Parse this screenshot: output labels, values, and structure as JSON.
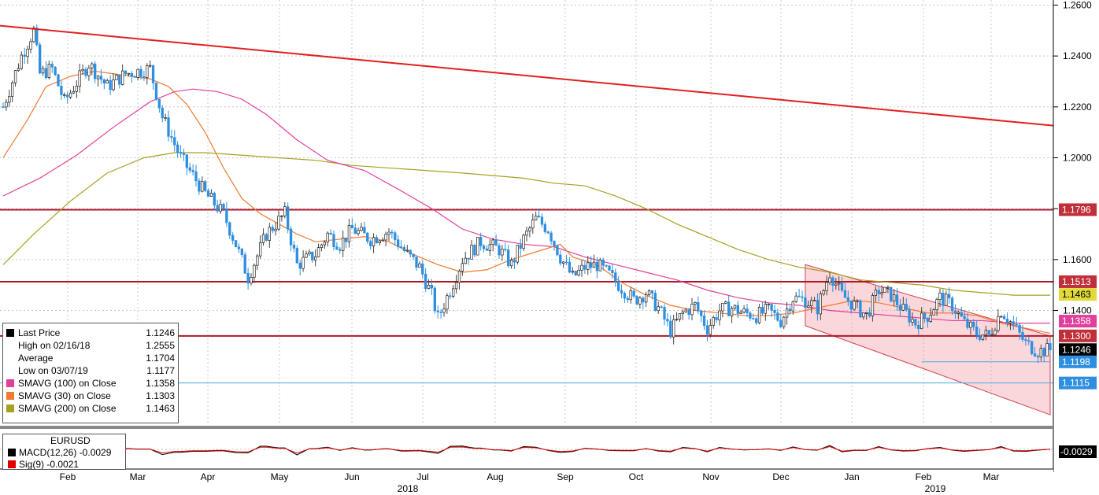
{
  "chart_data": {
    "type": "candlestick",
    "instrument": "EURUSD",
    "y_ticks": [
      "1.2600",
      "1.2400",
      "1.2200",
      "1.2000",
      "1.1800",
      "1.1600",
      "1.1400"
    ],
    "ylim": [
      1.095,
      1.262
    ],
    "x_months": [
      "Feb",
      "Mar",
      "Apr",
      "May",
      "Jun",
      "Jul",
      "Aug",
      "Sep",
      "Oct",
      "Nov",
      "Dec",
      "Jan",
      "Feb",
      "Mar"
    ],
    "x_years": [
      "2018",
      "2019"
    ],
    "close_path": [
      [
        0,
        1.22
      ],
      [
        6,
        1.24
      ],
      [
        10,
        1.25
      ],
      [
        12,
        1.233
      ],
      [
        16,
        1.235
      ],
      [
        20,
        1.222
      ],
      [
        28,
        1.237
      ],
      [
        34,
        1.228
      ],
      [
        40,
        1.233
      ],
      [
        48,
        1.235
      ],
      [
        52,
        1.216
      ],
      [
        58,
        1.2
      ],
      [
        66,
        1.186
      ],
      [
        72,
        1.178
      ],
      [
        76,
        1.166
      ],
      [
        80,
        1.153
      ],
      [
        86,
        1.17
      ],
      [
        92,
        1.178
      ],
      [
        96,
        1.158
      ],
      [
        102,
        1.162
      ],
      [
        106,
        1.17
      ],
      [
        110,
        1.166
      ],
      [
        114,
        1.172
      ],
      [
        120,
        1.168
      ],
      [
        126,
        1.171
      ],
      [
        132,
        1.162
      ],
      [
        136,
        1.157
      ],
      [
        140,
        1.146
      ],
      [
        142,
        1.137
      ],
      [
        146,
        1.148
      ],
      [
        150,
        1.16
      ],
      [
        156,
        1.167
      ],
      [
        162,
        1.164
      ],
      [
        166,
        1.158
      ],
      [
        170,
        1.168
      ],
      [
        174,
        1.176
      ],
      [
        178,
        1.172
      ],
      [
        182,
        1.161
      ],
      [
        186,
        1.153
      ],
      [
        190,
        1.157
      ],
      [
        194,
        1.158
      ],
      [
        198,
        1.154
      ],
      [
        202,
        1.149
      ],
      [
        206,
        1.144
      ],
      [
        210,
        1.147
      ],
      [
        214,
        1.141
      ],
      [
        218,
        1.132
      ],
      [
        222,
        1.139
      ],
      [
        226,
        1.142
      ],
      [
        230,
        1.133
      ],
      [
        234,
        1.14
      ],
      [
        238,
        1.141
      ],
      [
        242,
        1.139
      ],
      [
        246,
        1.138
      ],
      [
        250,
        1.14
      ],
      [
        254,
        1.136
      ],
      [
        258,
        1.145
      ],
      [
        262,
        1.144
      ],
      [
        266,
        1.141
      ],
      [
        270,
        1.155
      ],
      [
        274,
        1.146
      ],
      [
        278,
        1.142
      ],
      [
        282,
        1.138
      ],
      [
        286,
        1.148
      ],
      [
        290,
        1.146
      ],
      [
        294,
        1.14
      ],
      [
        298,
        1.135
      ],
      [
        302,
        1.138
      ],
      [
        306,
        1.145
      ],
      [
        310,
        1.142
      ],
      [
        314,
        1.135
      ],
      [
        318,
        1.131
      ],
      [
        322,
        1.13
      ],
      [
        326,
        1.14
      ],
      [
        330,
        1.134
      ],
      [
        334,
        1.127
      ],
      [
        338,
        1.124
      ],
      [
        342,
        1.1246
      ]
    ],
    "series": [
      {
        "name": "SMAVG (100)  on Close",
        "color": "#e0409c"
      },
      {
        "name": "SMAVG (30)  on Close",
        "color": "#f07a30"
      },
      {
        "name": "SMAVG (200)  on Close",
        "color": "#a8a020"
      }
    ],
    "sma30": [
      [
        0,
        1.2
      ],
      [
        8,
        1.215
      ],
      [
        14,
        1.228
      ],
      [
        22,
        1.232
      ],
      [
        30,
        1.234
      ],
      [
        36,
        1.233
      ],
      [
        42,
        1.232
      ],
      [
        48,
        1.231
      ],
      [
        54,
        1.228
      ],
      [
        60,
        1.221
      ],
      [
        66,
        1.21
      ],
      [
        72,
        1.196
      ],
      [
        78,
        1.184
      ],
      [
        84,
        1.178
      ],
      [
        90,
        1.174
      ],
      [
        96,
        1.17
      ],
      [
        102,
        1.167
      ],
      [
        110,
        1.168
      ],
      [
        118,
        1.169
      ],
      [
        126,
        1.167
      ],
      [
        134,
        1.162
      ],
      [
        142,
        1.158
      ],
      [
        150,
        1.155
      ],
      [
        158,
        1.156
      ],
      [
        166,
        1.16
      ],
      [
        174,
        1.163
      ],
      [
        182,
        1.166
      ],
      [
        186,
        1.161
      ],
      [
        194,
        1.158
      ],
      [
        202,
        1.151
      ],
      [
        210,
        1.146
      ],
      [
        218,
        1.142
      ],
      [
        226,
        1.14
      ],
      [
        234,
        1.139
      ],
      [
        242,
        1.138
      ],
      [
        250,
        1.138
      ],
      [
        258,
        1.139
      ],
      [
        266,
        1.141
      ],
      [
        270,
        1.142
      ],
      [
        278,
        1.144
      ],
      [
        286,
        1.143
      ],
      [
        294,
        1.141
      ],
      [
        302,
        1.139
      ],
      [
        310,
        1.139
      ],
      [
        318,
        1.138
      ],
      [
        326,
        1.135
      ],
      [
        334,
        1.133
      ],
      [
        342,
        1.131
      ]
    ],
    "sma100": [
      [
        0,
        1.185
      ],
      [
        12,
        1.192
      ],
      [
        24,
        1.201
      ],
      [
        36,
        1.212
      ],
      [
        48,
        1.222
      ],
      [
        56,
        1.226
      ],
      [
        62,
        1.227
      ],
      [
        70,
        1.226
      ],
      [
        78,
        1.223
      ],
      [
        86,
        1.217
      ],
      [
        96,
        1.207
      ],
      [
        106,
        1.199
      ],
      [
        118,
        1.195
      ],
      [
        130,
        1.187
      ],
      [
        140,
        1.18
      ],
      [
        150,
        1.172
      ],
      [
        160,
        1.168
      ],
      [
        170,
        1.166
      ],
      [
        180,
        1.165
      ],
      [
        190,
        1.161
      ],
      [
        200,
        1.158
      ],
      [
        210,
        1.155
      ],
      [
        220,
        1.152
      ],
      [
        230,
        1.148
      ],
      [
        240,
        1.145
      ],
      [
        250,
        1.143
      ],
      [
        260,
        1.142
      ],
      [
        270,
        1.14
      ],
      [
        280,
        1.139
      ],
      [
        290,
        1.138
      ],
      [
        300,
        1.137
      ],
      [
        310,
        1.136
      ],
      [
        320,
        1.136
      ],
      [
        330,
        1.135
      ],
      [
        342,
        1.135
      ]
    ],
    "sma200": [
      [
        0,
        1.158
      ],
      [
        10,
        1.17
      ],
      [
        22,
        1.183
      ],
      [
        34,
        1.194
      ],
      [
        46,
        1.2
      ],
      [
        56,
        1.202
      ],
      [
        66,
        1.202
      ],
      [
        78,
        1.201
      ],
      [
        90,
        1.2
      ],
      [
        102,
        1.199
      ],
      [
        114,
        1.197
      ],
      [
        126,
        1.196
      ],
      [
        138,
        1.195
      ],
      [
        150,
        1.194
      ],
      [
        160,
        1.193
      ],
      [
        170,
        1.192
      ],
      [
        180,
        1.19
      ],
      [
        190,
        1.189
      ],
      [
        200,
        1.185
      ],
      [
        210,
        1.18
      ],
      [
        220,
        1.174
      ],
      [
        230,
        1.169
      ],
      [
        240,
        1.164
      ],
      [
        250,
        1.16
      ],
      [
        260,
        1.157
      ],
      [
        270,
        1.155
      ],
      [
        280,
        1.152
      ],
      [
        290,
        1.151
      ],
      [
        300,
        1.15
      ],
      [
        310,
        1.148
      ],
      [
        320,
        1.147
      ],
      [
        330,
        1.146
      ],
      [
        342,
        1.146
      ]
    ],
    "trendline": {
      "x": [
        0,
        342
      ],
      "y": [
        1.255,
        1.212
      ]
    },
    "horizontal_levels": [
      1.1796,
      1.1513,
      1.13
    ],
    "extra_level": 1.1115,
    "channel": {
      "upper": [
        [
          262,
          1.158
        ],
        [
          342,
          1.13
        ]
      ],
      "lower": [
        [
          262,
          1.134
        ],
        [
          342,
          1.099
        ]
      ]
    },
    "price_tags": [
      {
        "value": 1.1796,
        "label": "1.1796",
        "bg": "#c0303a",
        "fg": "#fff"
      },
      {
        "value": 1.1513,
        "label": "1.1513",
        "bg": "#c0303a",
        "fg": "#fff"
      },
      {
        "value": 1.1463,
        "label": "1.1463",
        "bg": "#e0da3a",
        "fg": "#000"
      },
      {
        "value": 1.1358,
        "label": "1.1358",
        "bg": "#e0409c",
        "fg": "#fff"
      },
      {
        "value": 1.13,
        "label": "1.1300",
        "bg": "#c0303a",
        "fg": "#fff"
      },
      {
        "value": 1.1246,
        "label": "1.1246",
        "bg": "#000",
        "fg": "#fff"
      },
      {
        "value": 1.1198,
        "label": "1.1198",
        "bg": "#2e8fe0",
        "fg": "#fff"
      },
      {
        "value": 1.1115,
        "label": "1.1115",
        "bg": "#2e8fe0",
        "fg": "#fff"
      }
    ],
    "macd_tag": "-0.0029"
  },
  "legend": [
    {
      "name": "Last Price",
      "value": "1.1246",
      "color": "#000"
    },
    {
      "name": "High on 02/16/18",
      "value": "1.2555",
      "color": ""
    },
    {
      "name": "Average",
      "value": "1.1704",
      "color": ""
    },
    {
      "name": "Low on 03/07/19",
      "value": "1.1177",
      "color": ""
    },
    {
      "name": "SMAVG (100)  on Close",
      "value": "1.1358",
      "color": "#e0409c"
    },
    {
      "name": "SMAVG (30)  on Close",
      "value": "1.1303",
      "color": "#f07a30"
    },
    {
      "name": "SMAVG (200)  on Close",
      "value": "1.1463",
      "color": "#a8a020"
    }
  ],
  "macd_legend": {
    "title": "EURUSD",
    "macd": "MACD(12,26) -0.0029",
    "sig": "Sig(9)       -0.0021"
  }
}
